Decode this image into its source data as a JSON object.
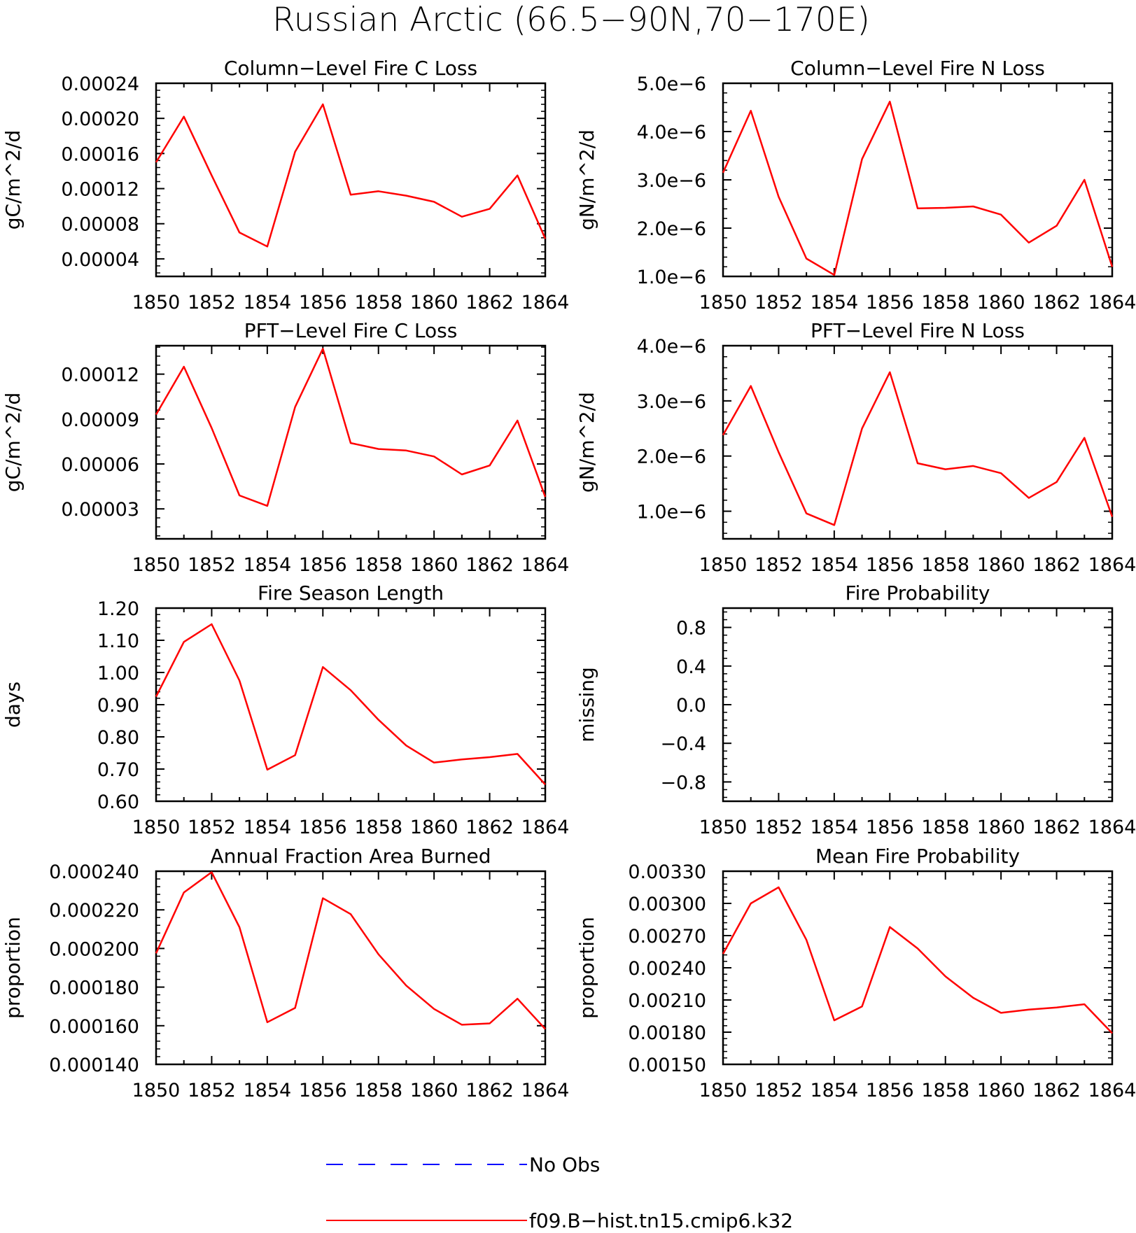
{
  "figure": {
    "title": "Russian Arctic (66.5−90N,70−170E)",
    "line_color": "#ff0000",
    "obs_color": "#0000ff",
    "axis_color": "#000000",
    "background": "#ffffff"
  },
  "legend": {
    "placement": "bottom-center",
    "entries": [
      {
        "label": "No Obs",
        "color": "#0000ff",
        "style": "dashed"
      },
      {
        "label": "f09.B−hist.tn15.cmip6.k32",
        "color": "#ff0000",
        "style": "solid"
      }
    ]
  },
  "chart_data": [
    {
      "type": "line",
      "title": "Column−Level Fire C Loss",
      "ylabel": "gC/m^2/d",
      "xlim": [
        1850,
        1864
      ],
      "ylim": [
        2e-05,
        0.00024
      ],
      "x_ticks": [
        1850,
        1852,
        1854,
        1856,
        1858,
        1860,
        1862,
        1864
      ],
      "x_tick_labels": [
        "1850",
        "1852",
        "1854",
        "1856",
        "1858",
        "1860",
        "1862",
        "1864"
      ],
      "y_ticks": [
        4e-05,
        8e-05,
        0.00012,
        0.00016,
        0.0002,
        0.00024
      ],
      "y_tick_labels": [
        "0.00004",
        "0.00008",
        "0.00012",
        "0.00016",
        "0.00020",
        "0.00024"
      ],
      "x": [
        1850,
        1851,
        1852,
        1853,
        1854,
        1855,
        1856,
        1857,
        1858,
        1859,
        1860,
        1861,
        1862,
        1863,
        1864
      ],
      "series": [
        {
          "name": "f09.B−hist.tn15.cmip6.k32",
          "color": "#ff0000",
          "values": [
            0.00015,
            0.000202,
            0.000135,
            7e-05,
            5.4e-05,
            0.000162,
            0.000216,
            0.000113,
            0.000117,
            0.000112,
            0.000105,
            8.8e-05,
            9.7e-05,
            0.000135,
            6.3e-05
          ]
        }
      ]
    },
    {
      "type": "line",
      "title": "Column−Level Fire N Loss",
      "ylabel": "gN/m^2/d",
      "xlim": [
        1850,
        1864
      ],
      "ylim": [
        1e-06,
        5e-06
      ],
      "x_ticks": [
        1850,
        1852,
        1854,
        1856,
        1858,
        1860,
        1862,
        1864
      ],
      "x_tick_labels": [
        "1850",
        "1852",
        "1854",
        "1856",
        "1858",
        "1860",
        "1862",
        "1864"
      ],
      "y_ticks": [
        1e-06,
        2e-06,
        3e-06,
        4e-06,
        5e-06
      ],
      "y_tick_labels": [
        "1.0e−6",
        "2.0e−6",
        "3.0e−6",
        "4.0e−6",
        "5.0e−6"
      ],
      "x": [
        1850,
        1851,
        1852,
        1853,
        1854,
        1855,
        1856,
        1857,
        1858,
        1859,
        1860,
        1861,
        1862,
        1863,
        1864
      ],
      "series": [
        {
          "name": "f09.B−hist.tn15.cmip6.k32",
          "color": "#ff0000",
          "values": [
            3.15e-06,
            4.43e-06,
            2.65e-06,
            1.37e-06,
            1.03e-06,
            3.43e-06,
            4.62e-06,
            2.41e-06,
            2.42e-06,
            2.45e-06,
            2.28e-06,
            1.7e-06,
            2.05e-06,
            3e-06,
            1.2e-06
          ]
        }
      ]
    },
    {
      "type": "line",
      "title": "PFT−Level Fire C Loss",
      "ylabel": "gC/m^2/d",
      "xlim": [
        1850,
        1864
      ],
      "ylim": [
        1e-05,
        0.000139
      ],
      "x_ticks": [
        1850,
        1852,
        1854,
        1856,
        1858,
        1860,
        1862,
        1864
      ],
      "x_tick_labels": [
        "1850",
        "1852",
        "1854",
        "1856",
        "1858",
        "1860",
        "1862",
        "1864"
      ],
      "y_ticks": [
        3e-05,
        6e-05,
        9e-05,
        0.00012
      ],
      "y_tick_labels": [
        "0.00003",
        "0.00006",
        "0.00009",
        "0.00012"
      ],
      "x": [
        1850,
        1851,
        1852,
        1853,
        1854,
        1855,
        1856,
        1857,
        1858,
        1859,
        1860,
        1861,
        1862,
        1863,
        1864
      ],
      "series": [
        {
          "name": "f09.B−hist.tn15.cmip6.k32",
          "color": "#ff0000",
          "values": [
            9.3e-05,
            0.000125,
            8.4e-05,
            3.9e-05,
            3.2e-05,
            9.8e-05,
            0.000137,
            7.4e-05,
            7e-05,
            6.9e-05,
            6.5e-05,
            5.3e-05,
            5.9e-05,
            8.9e-05,
            3.8e-05
          ]
        }
      ]
    },
    {
      "type": "line",
      "title": "PFT−Level Fire N Loss",
      "ylabel": "gN/m^2/d",
      "xlim": [
        1850,
        1864
      ],
      "ylim": [
        5e-07,
        4e-06
      ],
      "x_ticks": [
        1850,
        1852,
        1854,
        1856,
        1858,
        1860,
        1862,
        1864
      ],
      "x_tick_labels": [
        "1850",
        "1852",
        "1854",
        "1856",
        "1858",
        "1860",
        "1862",
        "1864"
      ],
      "y_ticks": [
        1e-06,
        2e-06,
        3e-06,
        4e-06
      ],
      "y_tick_labels": [
        "1.0e−6",
        "2.0e−6",
        "3.0e−6",
        "4.0e−6"
      ],
      "x": [
        1850,
        1851,
        1852,
        1853,
        1854,
        1855,
        1856,
        1857,
        1858,
        1859,
        1860,
        1861,
        1862,
        1863,
        1864
      ],
      "series": [
        {
          "name": "f09.B−hist.tn15.cmip6.k32",
          "color": "#ff0000",
          "values": [
            2.38e-06,
            3.27e-06,
            2.07e-06,
            9.6e-07,
            7.5e-07,
            2.5e-06,
            3.52e-06,
            1.87e-06,
            1.76e-06,
            1.82e-06,
            1.69e-06,
            1.24e-06,
            1.53e-06,
            2.33e-06,
            9e-07
          ]
        }
      ]
    },
    {
      "type": "line",
      "title": "Fire Season Length",
      "ylabel": "days",
      "xlim": [
        1850,
        1864
      ],
      "ylim": [
        0.6,
        1.2
      ],
      "x_ticks": [
        1850,
        1852,
        1854,
        1856,
        1858,
        1860,
        1862,
        1864
      ],
      "x_tick_labels": [
        "1850",
        "1852",
        "1854",
        "1856",
        "1858",
        "1860",
        "1862",
        "1864"
      ],
      "y_ticks": [
        0.6,
        0.7,
        0.8,
        0.9,
        1.0,
        1.1,
        1.2
      ],
      "y_tick_labels": [
        "0.60",
        "0.70",
        "0.80",
        "0.90",
        "1.00",
        "1.10",
        "1.20"
      ],
      "x": [
        1850,
        1851,
        1852,
        1853,
        1854,
        1855,
        1856,
        1857,
        1858,
        1859,
        1860,
        1861,
        1862,
        1863,
        1864
      ],
      "series": [
        {
          "name": "f09.B−hist.tn15.cmip6.k32",
          "color": "#ff0000",
          "values": [
            0.925,
            1.095,
            1.15,
            0.975,
            0.698,
            0.743,
            1.017,
            0.945,
            0.853,
            0.773,
            0.72,
            0.73,
            0.737,
            0.747,
            0.652
          ]
        }
      ]
    },
    {
      "type": "line",
      "title": "Fire Probability",
      "ylabel": "missing",
      "xlim": [
        1850,
        1864
      ],
      "ylim": [
        -1.0,
        1.0
      ],
      "x_ticks": [
        1850,
        1852,
        1854,
        1856,
        1858,
        1860,
        1862,
        1864
      ],
      "x_tick_labels": [
        "1850",
        "1852",
        "1854",
        "1856",
        "1858",
        "1860",
        "1862",
        "1864"
      ],
      "y_ticks": [
        -0.8,
        -0.4,
        0.0,
        0.4,
        0.8
      ],
      "y_tick_labels": [
        "−0.8",
        "−0.4",
        "0.0",
        "0.4",
        "0.8"
      ],
      "x": [],
      "series": []
    },
    {
      "type": "line",
      "title": "Annual Fraction Area Burned",
      "ylabel": "proportion",
      "xlim": [
        1850,
        1864
      ],
      "ylim": [
        0.00014,
        0.00024
      ],
      "x_ticks": [
        1850,
        1852,
        1854,
        1856,
        1858,
        1860,
        1862,
        1864
      ],
      "x_tick_labels": [
        "1850",
        "1852",
        "1854",
        "1856",
        "1858",
        "1860",
        "1862",
        "1864"
      ],
      "y_ticks": [
        0.00014,
        0.00016,
        0.00018,
        0.0002,
        0.00022,
        0.00024
      ],
      "y_tick_labels": [
        "0.000140",
        "0.000160",
        "0.000180",
        "0.000200",
        "0.000220",
        "0.000240"
      ],
      "x": [
        1850,
        1851,
        1852,
        1853,
        1854,
        1855,
        1856,
        1857,
        1858,
        1859,
        1860,
        1861,
        1862,
        1863,
        1864
      ],
      "series": [
        {
          "name": "f09.B−hist.tn15.cmip6.k32",
          "color": "#ff0000",
          "values": [
            0.0001975,
            0.000229,
            0.0002395,
            0.000211,
            0.0001618,
            0.0001692,
            0.000226,
            0.0002178,
            0.000197,
            0.0001808,
            0.0001687,
            0.0001605,
            0.0001612,
            0.000174,
            0.0001583
          ]
        }
      ]
    },
    {
      "type": "line",
      "title": "Mean Fire Probability",
      "ylabel": "proportion",
      "xlim": [
        1850,
        1864
      ],
      "ylim": [
        0.0015,
        0.0033
      ],
      "x_ticks": [
        1850,
        1852,
        1854,
        1856,
        1858,
        1860,
        1862,
        1864
      ],
      "x_tick_labels": [
        "1850",
        "1852",
        "1854",
        "1856",
        "1858",
        "1860",
        "1862",
        "1864"
      ],
      "y_ticks": [
        0.0015,
        0.0018,
        0.0021,
        0.0024,
        0.0027,
        0.003,
        0.0033
      ],
      "y_tick_labels": [
        "0.00150",
        "0.00180",
        "0.00210",
        "0.00240",
        "0.00270",
        "0.00300",
        "0.00330"
      ],
      "x": [
        1850,
        1851,
        1852,
        1853,
        1854,
        1855,
        1856,
        1857,
        1858,
        1859,
        1860,
        1861,
        1862,
        1863,
        1864
      ],
      "series": [
        {
          "name": "f09.B−hist.tn15.cmip6.k32",
          "color": "#ff0000",
          "values": [
            0.00253,
            0.003,
            0.00315,
            0.00266,
            0.00191,
            0.00204,
            0.00278,
            0.00258,
            0.00232,
            0.00212,
            0.00198,
            0.00201,
            0.00203,
            0.00206,
            0.00179
          ]
        }
      ]
    }
  ]
}
